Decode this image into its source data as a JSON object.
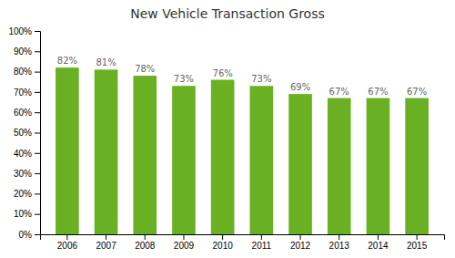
{
  "chart_data": {
    "type": "bar",
    "title": "New Vehicle Transaction Gross",
    "categories": [
      "2006",
      "2007",
      "2008",
      "2009",
      "2010",
      "2011",
      "2012",
      "2013",
      "2014",
      "2015"
    ],
    "values": [
      82,
      81,
      78,
      73,
      76,
      73,
      69,
      67,
      67,
      67
    ],
    "value_labels": [
      "82%",
      "81%",
      "78%",
      "73%",
      "76%",
      "73%",
      "69%",
      "67%",
      "67%",
      "67%"
    ],
    "data_labels": true,
    "color": "#6ab023",
    "ylim": [
      0,
      100
    ],
    "yticks": [
      {
        "value": 0,
        "label": "0%"
      },
      {
        "value": 10,
        "label": "10%"
      },
      {
        "value": 20,
        "label": "20%"
      },
      {
        "value": 30,
        "label": "30%"
      },
      {
        "value": 40,
        "label": "40%"
      },
      {
        "value": 50,
        "label": "50%"
      },
      {
        "value": 60,
        "label": "60%"
      },
      {
        "value": 70,
        "label": "70%"
      },
      {
        "value": 80,
        "label": "80%"
      },
      {
        "value": 90,
        "label": "90%"
      },
      {
        "value": 100,
        "label": "100%"
      }
    ],
    "grid": false
  }
}
